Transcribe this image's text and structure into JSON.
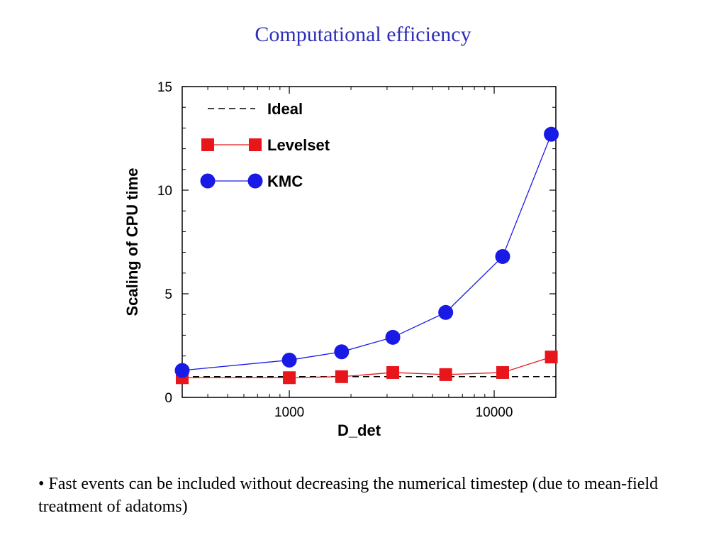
{
  "slide": {
    "title": "Computational efficiency",
    "bullet": "• Fast events can be included without decreasing the numerical timestep (due to mean-field treatment of adatoms)"
  },
  "chart_data": {
    "type": "line",
    "xlabel": "D_det",
    "ylabel": "Scaling of CPU time",
    "xscale": "log",
    "xlim": [
      300,
      20000
    ],
    "ylim": [
      0,
      15
    ],
    "xticks": [
      1000,
      10000
    ],
    "xtick_labels": [
      "1000",
      "10000"
    ],
    "yticks": [
      0,
      5,
      10,
      15
    ],
    "ytick_labels": [
      "0",
      "5",
      "10",
      "15"
    ],
    "grid": false,
    "legend_position": "top-left",
    "series": [
      {
        "name": "Ideal",
        "style": "dashed",
        "color": "#000000",
        "marker": "none",
        "x": [
          300,
          20000
        ],
        "y": [
          1.0,
          1.0
        ]
      },
      {
        "name": "Levelset",
        "style": "solid",
        "color": "#e8161b",
        "marker": "square",
        "x": [
          300,
          1000,
          1800,
          3200,
          5800,
          11000,
          19000
        ],
        "y": [
          0.95,
          0.95,
          1.0,
          1.2,
          1.1,
          1.2,
          1.95
        ]
      },
      {
        "name": "KMC",
        "style": "solid",
        "color": "#1a1ae6",
        "marker": "circle",
        "x": [
          300,
          1000,
          1800,
          3200,
          5800,
          11000,
          19000
        ],
        "y": [
          1.3,
          1.8,
          2.2,
          2.9,
          4.1,
          6.8,
          12.7
        ]
      }
    ]
  }
}
